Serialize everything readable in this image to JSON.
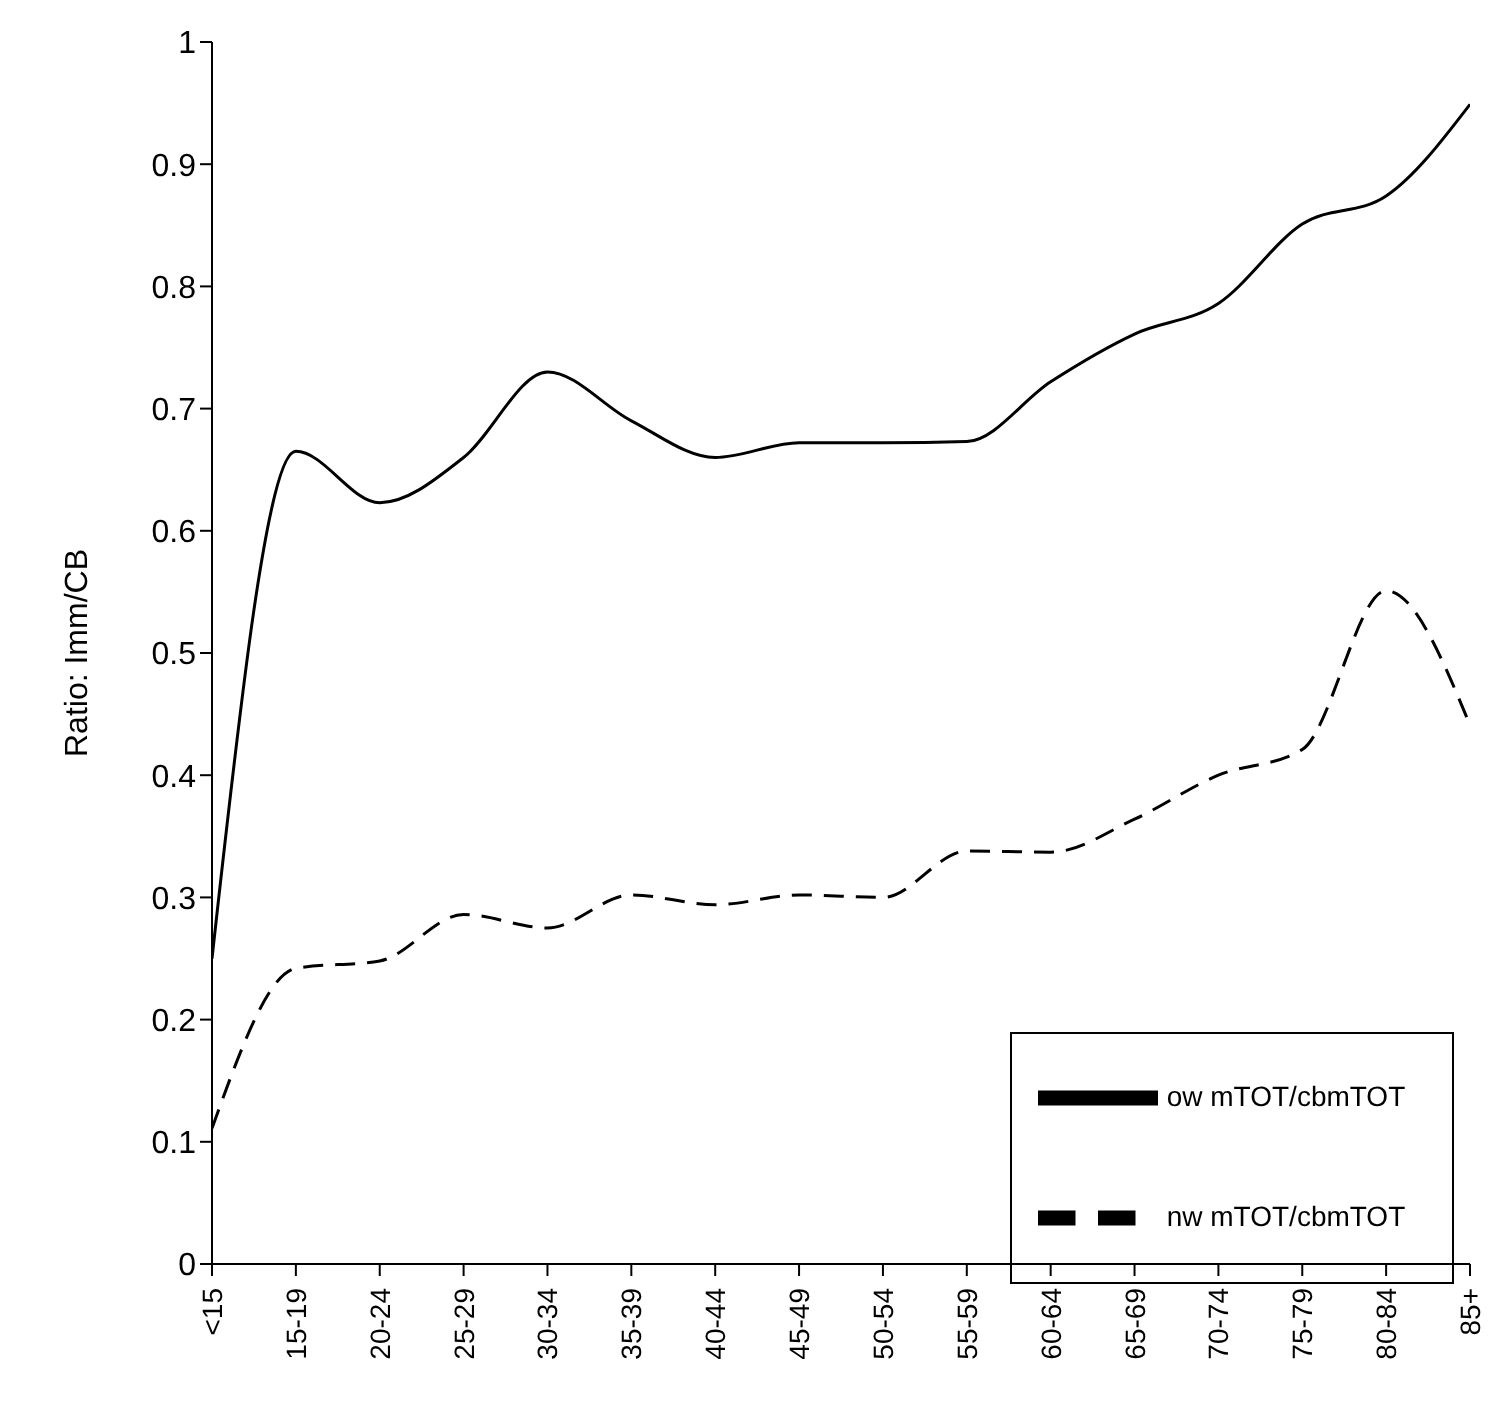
{
  "chart_data": {
    "type": "line",
    "ylabel": "Ratio: Imm/CB",
    "categories": [
      "<15",
      "15-19",
      "20-24",
      "25-29",
      "30-34",
      "35-39",
      "40-44",
      "45-49",
      "50-54",
      "55-59",
      "60-64",
      "65-69",
      "70-74",
      "75-79",
      "80-84",
      "85+"
    ],
    "series": [
      {
        "name": "ow mTOT/cbmTOT",
        "color": "#000000",
        "line_style": "solid",
        "values": [
          0.25,
          0.665,
          0.623,
          0.66,
          0.73,
          0.69,
          0.66,
          0.672,
          0.672,
          0.673,
          0.722,
          0.761,
          0.786,
          0.851,
          0.874,
          0.949
        ]
      },
      {
        "name": "nw mTOT/cbmTOT",
        "color": "#000000",
        "line_style": "dashed",
        "values": [
          0.111,
          0.242,
          0.248,
          0.286,
          0.275,
          0.302,
          0.294,
          0.302,
          0.3,
          0.338,
          0.337,
          0.364,
          0.4,
          0.421,
          0.551,
          0.441
        ]
      }
    ],
    "ylim": [
      0,
      1
    ],
    "yticks": [
      0,
      0.1,
      0.2,
      0.3,
      0.4,
      0.5,
      0.6,
      0.7,
      0.8,
      0.9,
      1
    ],
    "grid": false,
    "legend": "bottom right",
    "marker": "none"
  }
}
